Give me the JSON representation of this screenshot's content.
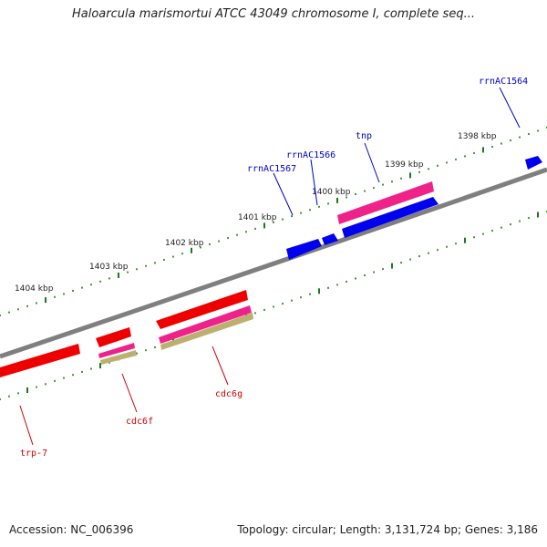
{
  "title": "Haloarcula marismortui ATCC 43049 chromosome I, complete seq...",
  "footer": {
    "accession": "Accession: NC_006396",
    "summary": "Topology: circular; Length: 3,131,724 bp; Genes: 3,186"
  },
  "colors": {
    "backbone": "#808080",
    "forward_gene": "#0000ee",
    "reverse_gene": "#ee0000",
    "rna": "#ee2288",
    "olive": "#bcb070",
    "tick": "#1a7a1a",
    "label_forward": "#0000cc",
    "label_reverse": "#cc0000"
  },
  "kbp_labels": [
    "1398 kbp",
    "1399 kbp",
    "1400 kbp",
    "1401 kbp",
    "1402 kbp",
    "1403 kbp",
    "1404 kbp"
  ],
  "gene_labels": {
    "forward": [
      "rrnAC1564",
      "tnp",
      "rrnAC1566",
      "rrnAC1567"
    ],
    "reverse": [
      "trp-7",
      "cdc6f",
      "cdc6g"
    ]
  }
}
